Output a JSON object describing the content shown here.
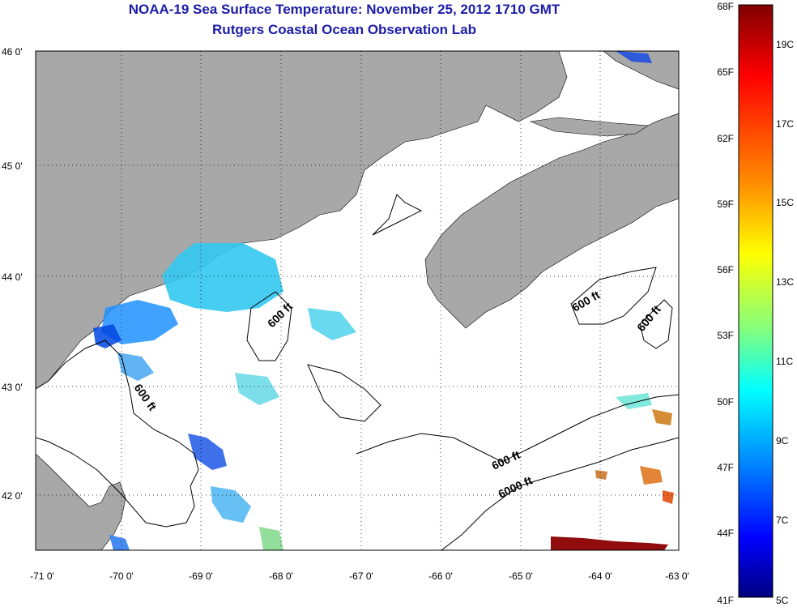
{
  "header": {
    "title": "NOAA-19 Sea Surface Temperature:  November 25, 2012 1710 GMT",
    "subtitle": "Rutgers Coastal Ocean Observation Lab"
  },
  "axes": {
    "lat_labels": [
      "46 0'",
      "45 0'",
      "44 0'",
      "43 0'",
      "42 0'"
    ],
    "lon_labels": [
      "-71 0'",
      "-70 0'",
      "-69 0'",
      "-68 0'",
      "-67 0'",
      "-66 0'",
      "-65 0'",
      "-64 0'",
      "-63 0'"
    ]
  },
  "contours": {
    "labels": [
      "600 ft",
      "600 ft",
      "600 ft",
      "600 ft",
      "6000 ft",
      "600 ft"
    ]
  },
  "colorbar": {
    "fahrenheit_labels": [
      "68F",
      "65F",
      "62F",
      "59F",
      "56F",
      "53F",
      "50F",
      "47F",
      "44F",
      "41F"
    ],
    "celsius_labels": [
      "19C",
      "17C",
      "15C",
      "13C",
      "11C",
      "9C",
      "7C",
      "5C"
    ],
    "range_f": [
      41,
      68
    ]
  },
  "colors": {
    "land": "#a8a8a8",
    "ocean": "#ffffff",
    "title": "#1c1ca8",
    "gradient": [
      "#800000",
      "#ff0000",
      "#ff8000",
      "#ffff00",
      "#80ff80",
      "#00ffff",
      "#0080ff",
      "#0000ff",
      "#000080"
    ]
  }
}
